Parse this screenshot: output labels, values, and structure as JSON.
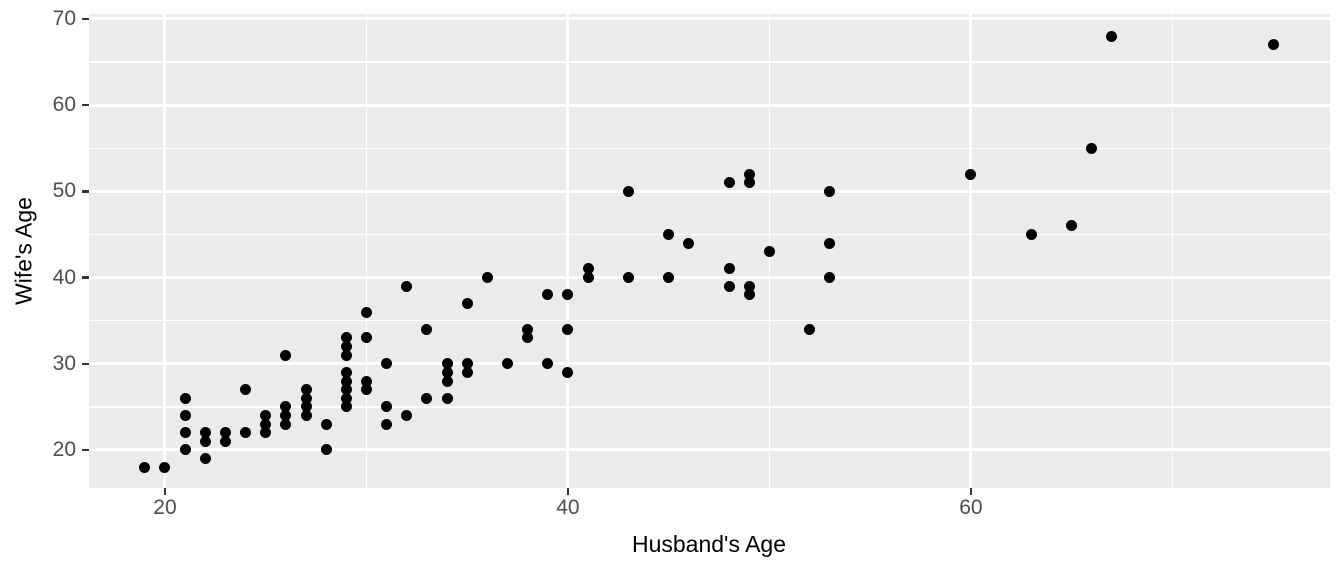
{
  "figure": {
    "xlabel": "Husband's Age",
    "ylabel": "Wife's Age"
  },
  "colors": {
    "panel_background": "#EBEBEB",
    "gridline": "#FFFFFF",
    "point": "#000000",
    "tick_mark": "#333333",
    "tick_label": "#4D4D4D",
    "axis_title": "#000000",
    "page_background": "#FFFFFF"
  },
  "chart_data": {
    "type": "scatter",
    "title": "",
    "xlabel": "Husband's Age",
    "ylabel": "Wife's Age",
    "legend": false,
    "grid": true,
    "xlim": [
      16.23,
      77.82
    ],
    "ylim": [
      15.59,
      70.58
    ],
    "x_major_ticks": [
      20,
      40,
      60
    ],
    "x_minor_gridlines": [
      30,
      50,
      70
    ],
    "y_major_ticks": [
      20,
      30,
      40,
      50,
      60,
      70
    ],
    "y_minor_gridlines": [
      25,
      35,
      45,
      55,
      65
    ],
    "x_tick_labels": [
      "20",
      "40",
      "60"
    ],
    "y_tick_labels": [
      "20",
      "30",
      "40",
      "50",
      "60",
      "70"
    ],
    "points": [
      [
        19,
        18
      ],
      [
        20,
        18
      ],
      [
        21,
        26
      ],
      [
        21,
        24
      ],
      [
        21,
        22
      ],
      [
        21,
        20
      ],
      [
        22,
        22
      ],
      [
        22,
        21
      ],
      [
        22,
        19
      ],
      [
        23,
        22
      ],
      [
        23,
        21
      ],
      [
        24,
        27
      ],
      [
        24,
        22
      ],
      [
        25,
        24
      ],
      [
        25,
        23
      ],
      [
        25,
        22
      ],
      [
        26,
        31
      ],
      [
        26,
        25
      ],
      [
        26,
        24
      ],
      [
        26,
        23
      ],
      [
        27,
        27
      ],
      [
        27,
        26
      ],
      [
        27,
        25
      ],
      [
        27,
        24
      ],
      [
        28,
        23
      ],
      [
        28,
        20
      ],
      [
        29,
        33
      ],
      [
        29,
        32
      ],
      [
        29,
        31
      ],
      [
        29,
        29
      ],
      [
        29,
        28
      ],
      [
        29,
        27
      ],
      [
        29,
        26
      ],
      [
        29,
        25
      ],
      [
        30,
        36
      ],
      [
        30,
        33
      ],
      [
        30,
        28
      ],
      [
        30,
        27
      ],
      [
        31,
        30
      ],
      [
        31,
        25
      ],
      [
        31,
        23
      ],
      [
        32,
        39
      ],
      [
        32,
        24
      ],
      [
        33,
        34
      ],
      [
        33,
        26
      ],
      [
        34,
        30
      ],
      [
        34,
        29
      ],
      [
        34,
        28
      ],
      [
        34,
        26
      ],
      [
        35,
        37
      ],
      [
        35,
        30
      ],
      [
        35,
        29
      ],
      [
        36,
        40
      ],
      [
        37,
        30
      ],
      [
        38,
        34
      ],
      [
        38,
        33
      ],
      [
        39,
        38
      ],
      [
        39,
        30
      ],
      [
        40,
        38
      ],
      [
        40,
        34
      ],
      [
        40,
        29
      ],
      [
        41,
        41
      ],
      [
        41,
        40
      ],
      [
        43,
        50
      ],
      [
        43,
        40
      ],
      [
        45,
        45
      ],
      [
        45,
        40
      ],
      [
        46,
        44
      ],
      [
        48,
        51
      ],
      [
        48,
        41
      ],
      [
        48,
        39
      ],
      [
        49,
        52
      ],
      [
        49,
        51
      ],
      [
        49,
        39
      ],
      [
        49,
        38
      ],
      [
        50,
        43
      ],
      [
        52,
        34
      ],
      [
        53,
        50
      ],
      [
        53,
        44
      ],
      [
        53,
        40
      ],
      [
        60,
        52
      ],
      [
        63,
        45
      ],
      [
        65,
        46
      ],
      [
        66,
        55
      ],
      [
        67,
        68
      ],
      [
        75,
        67
      ]
    ]
  }
}
